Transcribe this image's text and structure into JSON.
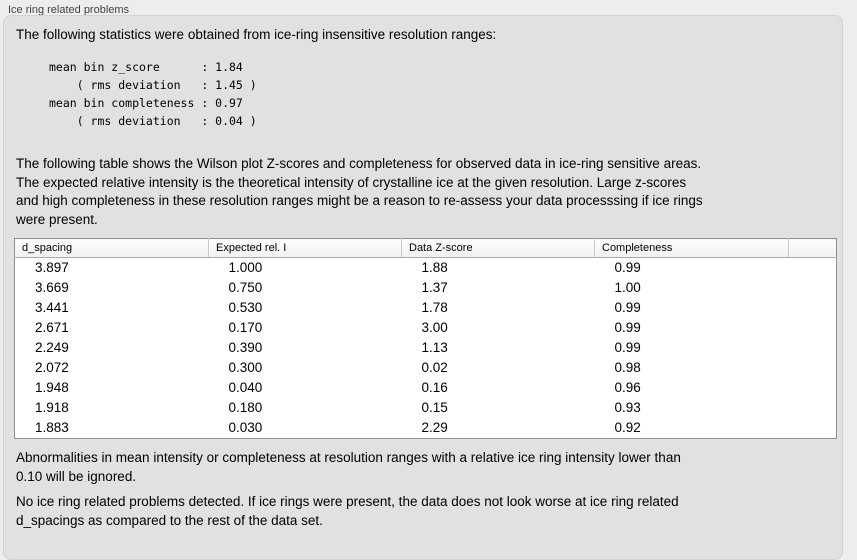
{
  "group": {
    "title": "Ice ring related problems"
  },
  "intro": "The following statistics were obtained from ice-ring insensitive resolution ranges:",
  "stats_block": "mean bin z_score      : 1.84\n    ( rms deviation   : 1.45 )\nmean bin completeness : 0.97\n    ( rms deviation   : 0.04 )",
  "stats": {
    "mean_bin_z_score": "1.84",
    "z_score_rms_deviation": "1.45",
    "mean_bin_completeness": "0.97",
    "completeness_rms_deviation": "0.04"
  },
  "table_intro": "The following table shows the Wilson plot Z-scores and completeness for observed data in ice-ring sensitive areas.\nThe expected relative intensity is the theoretical intensity of crystalline ice at the given resolution. Large z-scores\nand high completeness in these resolution ranges might be a reason to re-assess your data processsing if ice rings\nwere present.",
  "table": {
    "columns": [
      "d_spacing",
      "Expected rel. I",
      "Data Z-score",
      "Completeness",
      ""
    ],
    "rows": [
      [
        "3.897",
        "1.000",
        "1.88",
        "0.99",
        ""
      ],
      [
        "3.669",
        "0.750",
        "1.37",
        "1.00",
        ""
      ],
      [
        "3.441",
        "0.530",
        "1.78",
        "0.99",
        ""
      ],
      [
        "2.671",
        "0.170",
        "3.00",
        "0.99",
        ""
      ],
      [
        "2.249",
        "0.390",
        "1.13",
        "0.99",
        ""
      ],
      [
        "2.072",
        "0.300",
        "0.02",
        "0.98",
        ""
      ],
      [
        "1.948",
        "0.040",
        "0.16",
        "0.96",
        ""
      ],
      [
        "1.918",
        "0.180",
        "0.15",
        "0.93",
        ""
      ],
      [
        "1.883",
        "0.030",
        "2.29",
        "0.92",
        ""
      ]
    ]
  },
  "note_ignore": "Abnormalities in mean intensity or completeness at resolution ranges with a relative ice ring intensity lower than\n0.10 will be ignored.",
  "conclusion": "No ice ring related problems detected. If ice rings were present, the data does not look worse at ice ring related\nd_spacings as compared to the rest of the data set."
}
